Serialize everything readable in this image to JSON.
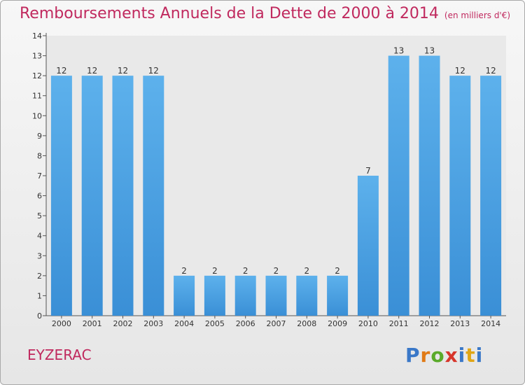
{
  "header": {
    "title": "Remboursements Annuels de la Dette de 2000 à 2014",
    "unit": "(en milliers d'€)"
  },
  "footer": {
    "town": "EYZERAC",
    "logo": [
      "P",
      "r",
      "o",
      "x",
      "i",
      "t",
      "i"
    ]
  },
  "colors": {
    "title": "#c0295e",
    "bar": "#3a8fd6",
    "bar_light": "#5db1ec"
  },
  "chart_data": {
    "type": "bar",
    "title": "Remboursements Annuels de la Dette de 2000 à 2014",
    "ylabel": "(en milliers d'€)",
    "categories": [
      "2000",
      "2001",
      "2002",
      "2003",
      "2004",
      "2005",
      "2006",
      "2007",
      "2008",
      "2009",
      "2010",
      "2011",
      "2012",
      "2013",
      "2014"
    ],
    "values": [
      12,
      12,
      12,
      12,
      2,
      2,
      2,
      2,
      2,
      2,
      7,
      13,
      13,
      12,
      12
    ],
    "data_labels": [
      "12",
      "12",
      "12",
      "12",
      "2",
      "2",
      "2",
      "2",
      "2",
      "2",
      "7",
      "13",
      "13",
      "12",
      "12"
    ],
    "y_ticks": [
      "0",
      "1",
      "2",
      "3",
      "4",
      "5",
      "6",
      "7",
      "8",
      "9",
      "10",
      "11",
      "12",
      "13",
      "14"
    ],
    "ylim": [
      0,
      14
    ],
    "grid": false
  }
}
